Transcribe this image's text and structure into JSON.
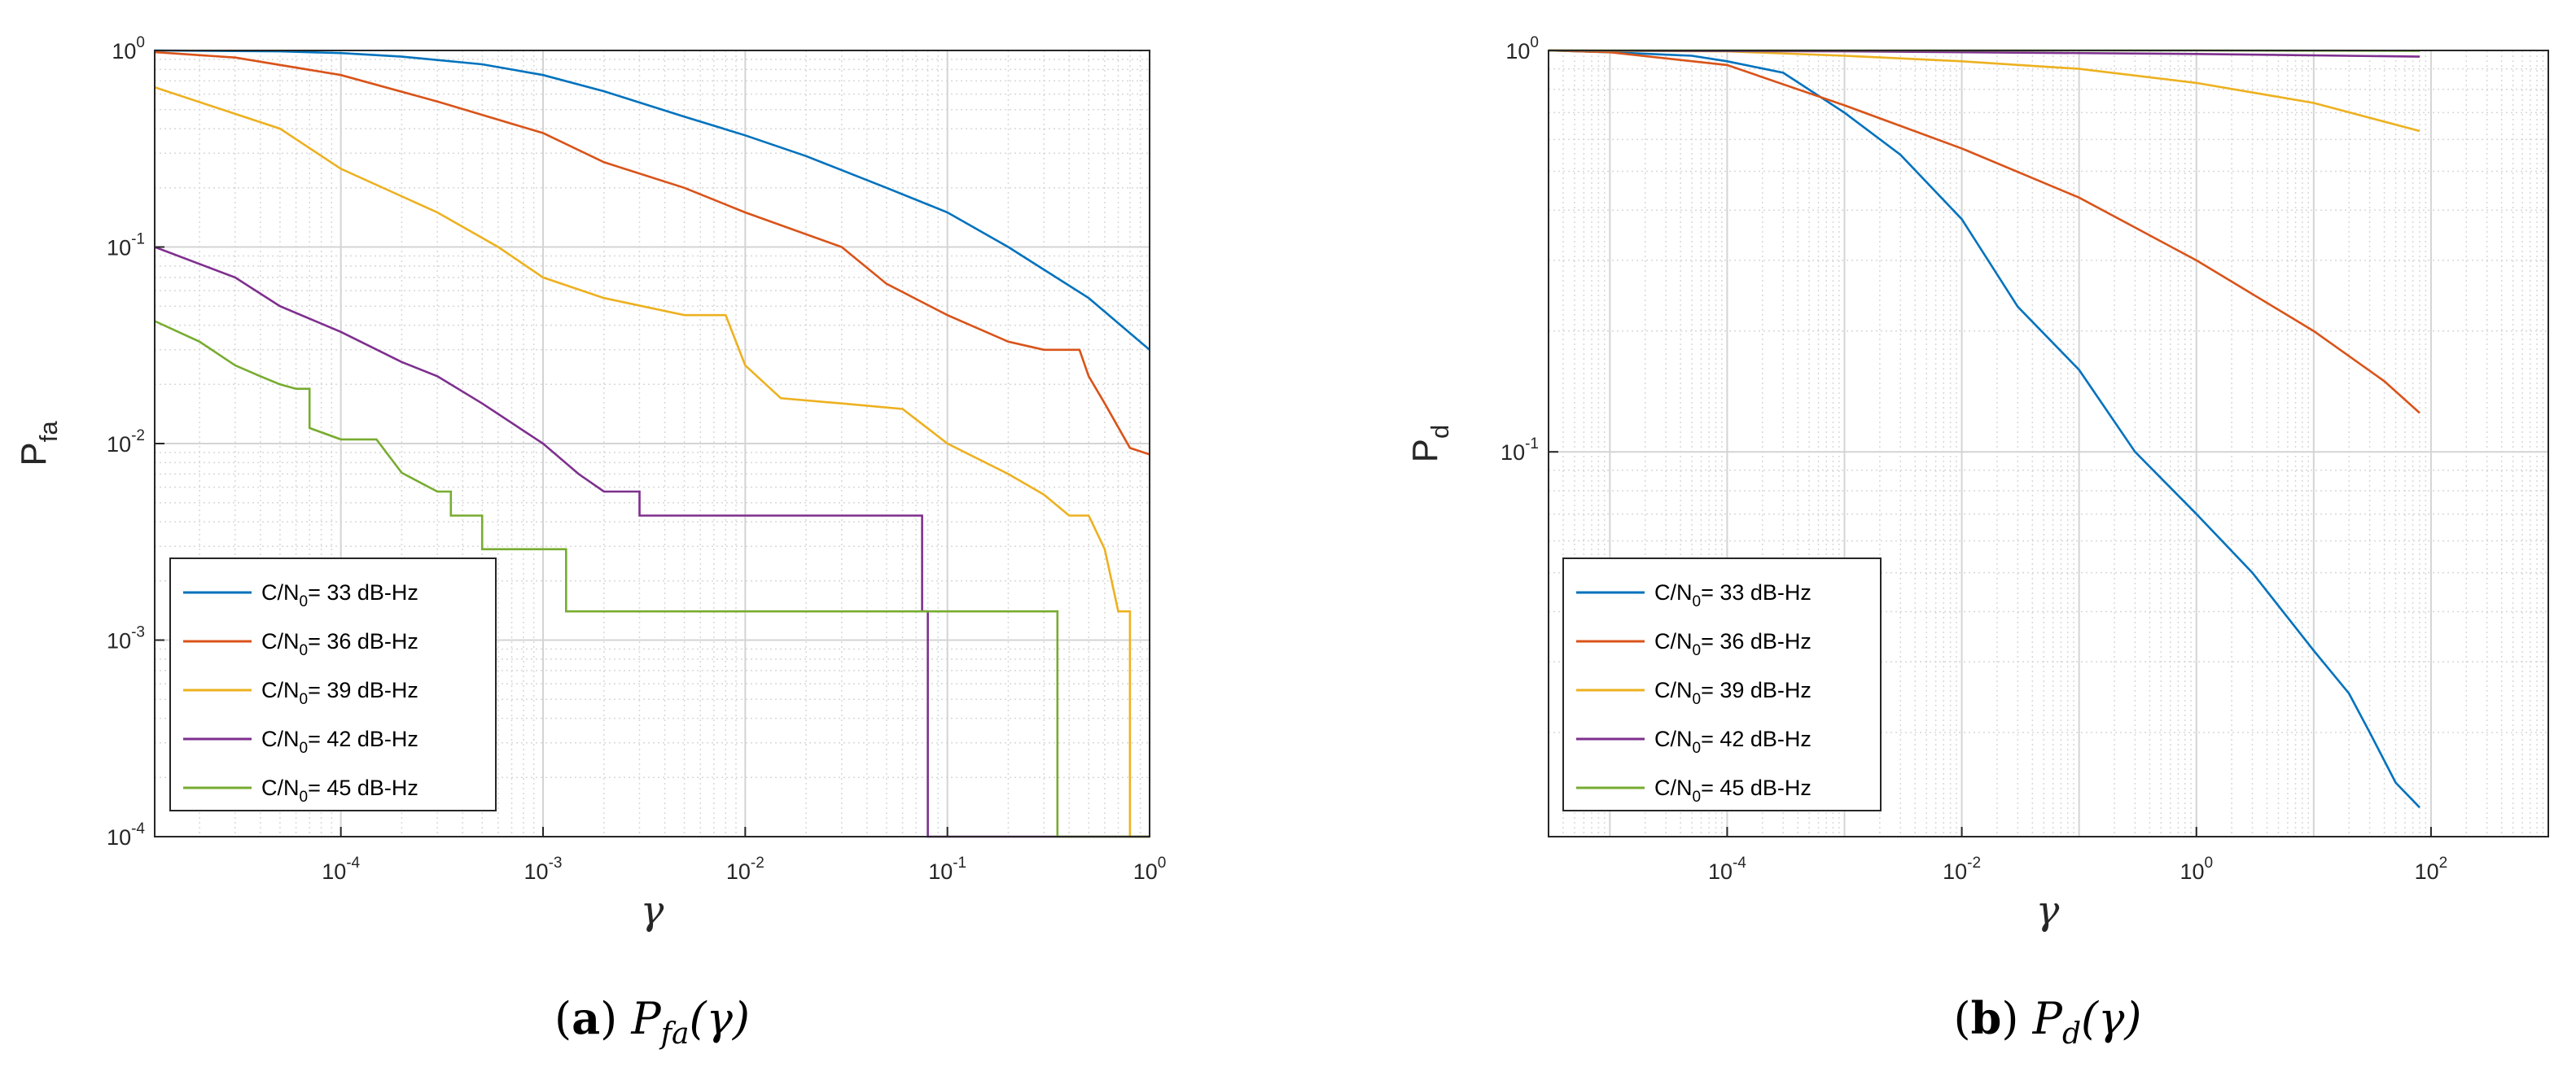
{
  "colors": {
    "c33": "#0072BD",
    "c36": "#D95319",
    "c39": "#EDB120",
    "c42": "#7E2F8E",
    "c45": "#77AC30"
  },
  "chart_data": [
    {
      "id": "a",
      "type": "line",
      "xscale": "log",
      "yscale": "log",
      "xlim": [
        1.2e-05,
        1
      ],
      "ylim": [
        0.0001,
        1
      ],
      "xlabel": "γ",
      "ylabel": {
        "main": "P",
        "sub": "fa"
      },
      "xticks": [
        {
          "base": "10",
          "exp": "-4",
          "value": 0.0001
        },
        {
          "base": "10",
          "exp": "-3",
          "value": 0.001
        },
        {
          "base": "10",
          "exp": "-2",
          "value": 0.01
        },
        {
          "base": "10",
          "exp": "-1",
          "value": 0.1
        },
        {
          "base": "10",
          "exp": "0",
          "value": 1
        }
      ],
      "yticks": [
        {
          "base": "10",
          "exp": "-4",
          "value": 0.0001
        },
        {
          "base": "10",
          "exp": "-3",
          "value": 0.001
        },
        {
          "base": "10",
          "exp": "-2",
          "value": 0.01
        },
        {
          "base": "10",
          "exp": "-1",
          "value": 0.1
        },
        {
          "base": "10",
          "exp": "0",
          "value": 1
        }
      ],
      "grid": true,
      "legend_position": "bottom-left",
      "caption": {
        "label": "(a)",
        "func": "P",
        "sub": "fa",
        "arg": "(γ)"
      },
      "series": [
        {
          "name_pre": "C/N",
          "name_sub": "0",
          "name_post": "= 33 dB-Hz",
          "color_key": "c33",
          "x": [
            1.2e-05,
            5e-05,
            0.0001,
            0.0002,
            0.0005,
            0.001,
            0.002,
            0.005,
            0.01,
            0.02,
            0.05,
            0.1,
            0.2,
            0.5,
            1
          ],
          "y": [
            1.0,
            0.99,
            0.97,
            0.93,
            0.85,
            0.75,
            0.62,
            0.46,
            0.37,
            0.29,
            0.2,
            0.15,
            0.1,
            0.055,
            0.03
          ]
        },
        {
          "name_pre": "C/N",
          "name_sub": "0",
          "name_post": "= 36 dB-Hz",
          "color_key": "c36",
          "x": [
            1.2e-05,
            3e-05,
            0.0001,
            0.0003,
            0.001,
            0.002,
            0.005,
            0.01,
            0.03,
            0.05,
            0.1,
            0.2,
            0.3,
            0.4,
            0.45,
            0.5,
            0.6,
            0.8,
            1
          ],
          "y": [
            0.98,
            0.92,
            0.75,
            0.55,
            0.38,
            0.27,
            0.2,
            0.15,
            0.1,
            0.065,
            0.045,
            0.033,
            0.03,
            0.03,
            0.03,
            0.022,
            0.016,
            0.0095,
            0.0088
          ]
        },
        {
          "name_pre": "C/N",
          "name_sub": "0",
          "name_post": "= 39 dB-Hz",
          "color_key": "c39",
          "x": [
            1.2e-05,
            5e-05,
            0.0001,
            0.0003,
            0.0006,
            0.001,
            0.002,
            0.005,
            0.008,
            0.01,
            0.015,
            0.03,
            0.06,
            0.1,
            0.2,
            0.3,
            0.4,
            0.5,
            0.6,
            0.7,
            0.8,
            0.8,
            0.85,
            0.85,
            1
          ],
          "y": [
            0.65,
            0.4,
            0.25,
            0.15,
            0.1,
            0.07,
            0.055,
            0.045,
            0.045,
            0.025,
            0.017,
            0.016,
            0.015,
            0.01,
            0.007,
            0.0055,
            0.0043,
            0.0043,
            0.0029,
            0.0014,
            0.0014,
            0.0001,
            0.0001,
            0.0001,
            0.0001
          ]
        },
        {
          "name_pre": "C/N",
          "name_sub": "0",
          "name_post": "= 42 dB-Hz",
          "color_key": "c42",
          "x": [
            1.2e-05,
            3e-05,
            5e-05,
            0.0001,
            0.0002,
            0.0003,
            0.0005,
            0.001,
            0.0015,
            0.002,
            0.003,
            0.003,
            0.01,
            0.05,
            0.075,
            0.075,
            0.08,
            0.08,
            0.085,
            0.085,
            1
          ],
          "y": [
            0.1,
            0.07,
            0.05,
            0.037,
            0.026,
            0.022,
            0.016,
            0.01,
            0.007,
            0.0057,
            0.0057,
            0.0043,
            0.0043,
            0.0043,
            0.0043,
            0.0014,
            0.0014,
            0.0001,
            0.0001,
            0.0001,
            0.0001
          ]
        },
        {
          "name_pre": "C/N",
          "name_sub": "0",
          "name_post": "= 45 dB-Hz",
          "color_key": "c45",
          "x": [
            1.2e-05,
            2e-05,
            3e-05,
            4e-05,
            5e-05,
            6e-05,
            7e-05,
            7e-05,
            0.0001,
            0.00015,
            0.0002,
            0.0003,
            0.00035,
            0.00035,
            0.0005,
            0.0005,
            0.001,
            0.0013,
            0.0013,
            0.35,
            0.35,
            0.37,
            0.37,
            1
          ],
          "y": [
            0.042,
            0.033,
            0.025,
            0.022,
            0.02,
            0.019,
            0.019,
            0.012,
            0.0105,
            0.0105,
            0.0071,
            0.0057,
            0.0057,
            0.0043,
            0.0043,
            0.0029,
            0.0029,
            0.0029,
            0.0014,
            0.0014,
            0.0001,
            0.0001,
            0.0001,
            0.0001
          ]
        }
      ]
    },
    {
      "id": "b",
      "type": "line",
      "xscale": "log",
      "yscale": "log",
      "xlim": [
        3e-06,
        1000
      ],
      "ylim": [
        0.011,
        1
      ],
      "xlabel": "γ",
      "ylabel": {
        "main": "P",
        "sub": "d"
      },
      "xticks": [
        {
          "base": "10",
          "exp": "-4",
          "value": 0.0001
        },
        {
          "base": "10",
          "exp": "-2",
          "value": 0.01
        },
        {
          "base": "10",
          "exp": "0",
          "value": 1
        },
        {
          "base": "10",
          "exp": "2",
          "value": 100
        }
      ],
      "yticks": [
        {
          "base": "10",
          "exp": "-1",
          "value": 0.1
        },
        {
          "base": "10",
          "exp": "0",
          "value": 1
        }
      ],
      "grid": true,
      "legend_position": "bottom-left",
      "caption": {
        "label": "(b)",
        "func": "P",
        "sub": "d",
        "arg": "(γ)"
      },
      "series": [
        {
          "name_pre": "C/N",
          "name_sub": "0",
          "name_post": "= 33 dB-Hz",
          "color_key": "c33",
          "x": [
            3e-06,
            1e-05,
            5e-05,
            0.0001,
            0.0003,
            0.001,
            0.003,
            0.01,
            0.03,
            0.1,
            0.3,
            1,
            3,
            10,
            20,
            30,
            50,
            80
          ],
          "y": [
            1.0,
            0.99,
            0.97,
            0.94,
            0.88,
            0.7,
            0.55,
            0.38,
            0.23,
            0.16,
            0.1,
            0.07,
            0.05,
            0.032,
            0.025,
            0.02,
            0.015,
            0.013
          ]
        },
        {
          "name_pre": "C/N",
          "name_sub": "0",
          "name_post": "= 36 dB-Hz",
          "color_key": "c36",
          "x": [
            3e-06,
            1e-05,
            0.0001,
            0.001,
            0.01,
            0.1,
            1,
            10,
            40,
            80
          ],
          "y": [
            1.0,
            0.99,
            0.92,
            0.73,
            0.57,
            0.43,
            0.3,
            0.2,
            0.15,
            0.125
          ]
        },
        {
          "name_pre": "C/N",
          "name_sub": "0",
          "name_post": "= 39 dB-Hz",
          "color_key": "c39",
          "x": [
            3e-06,
            0.0001,
            0.001,
            0.01,
            0.1,
            1,
            10,
            80
          ],
          "y": [
            1.0,
            0.995,
            0.97,
            0.94,
            0.9,
            0.83,
            0.74,
            0.63
          ]
        },
        {
          "name_pre": "C/N",
          "name_sub": "0",
          "name_post": "= 42 dB-Hz",
          "color_key": "c42",
          "x": [
            3e-06,
            0.001,
            1,
            80
          ],
          "y": [
            1.0,
            0.995,
            0.98,
            0.965
          ]
        },
        {
          "name_pre": "C/N",
          "name_sub": "0",
          "name_post": "= 45 dB-Hz",
          "color_key": "c45",
          "x": [
            3e-06,
            1,
            80
          ],
          "y": [
            1.0,
            1.0,
            0.998
          ]
        }
      ]
    }
  ]
}
